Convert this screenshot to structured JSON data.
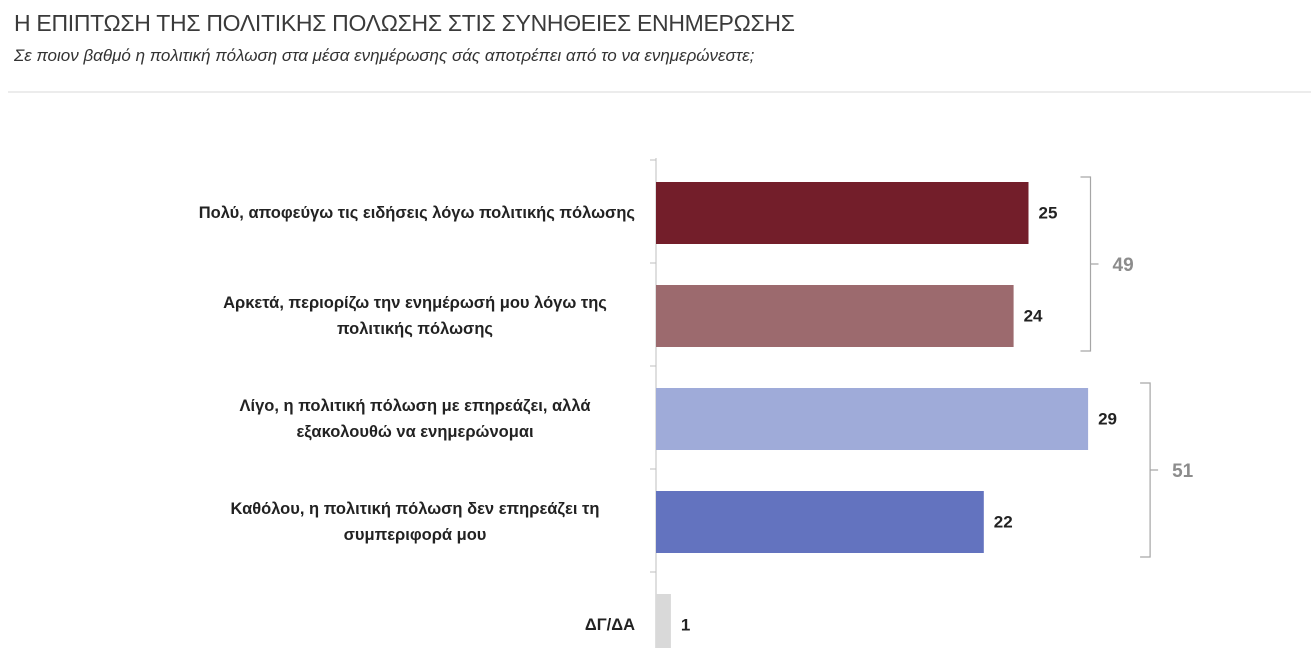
{
  "chart_data": {
    "type": "bar",
    "orientation": "horizontal",
    "title": "Η ΕΠΙΠΤΩΣΗ ΤΗΣ ΠΟΛΙΤΙΚΗΣ ΠΟΛΩΣΗΣ ΣΤΙΣ ΣΥΝΗΘΕΙΕΣ ΕΝΗΜΕΡΩΣΗΣ",
    "subtitle": "Σε ποιον βαθμό η πολιτική πόλωση στα μέσα ενημέρωσης σάς αποτρέπει από το να ενημερώνεστε;",
    "categories": [
      "Πολύ, αποφεύγω τις ειδήσεις λόγω πολιτικής πόλωσης",
      "Αρκετά, περιορίζω την ενημέρωσή μου λόγω της πολιτικής πόλωσης",
      "Λίγο, η πολιτική πόλωση με επηρεάζει, αλλά εξακολουθώ να ενημερώνομαι",
      "Καθόλου, η πολιτική πόλωση δεν επηρεάζει τη συμπεριφορά μου",
      "ΔΓ/ΔΑ"
    ],
    "values": [
      25,
      24,
      29,
      22,
      1
    ],
    "colors": [
      "#731e2a",
      "#9c6a6e",
      "#9fabd9",
      "#6373bf",
      "#d9d9d9"
    ],
    "group_totals": [
      49,
      51
    ]
  }
}
